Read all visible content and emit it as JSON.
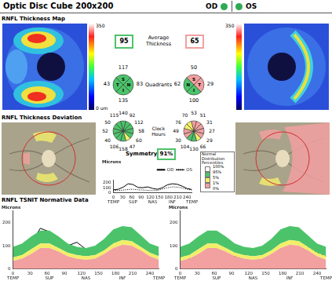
{
  "header": {
    "title": "Optic Disc Cube 200x200",
    "eyes": [
      "OD",
      "OS"
    ]
  },
  "thickness_map": {
    "label": "RNFL Thickness Map",
    "scale_max": 350,
    "scale_min": "0 um"
  },
  "deviation": {
    "label": "RNFL Thickness Deviation"
  },
  "average_thickness": {
    "label": "Average Thickness",
    "OD": {
      "value": 95,
      "color": "#4cc36a"
    },
    "OS": {
      "value": 65,
      "color": "#f2a0a0"
    }
  },
  "quadrants": {
    "label": "Quadrants",
    "OD": [
      {
        "label": "S",
        "value": 117,
        "color": "#4cc36a"
      },
      {
        "label": "N",
        "value": 83,
        "color": "#4cc36a"
      },
      {
        "label": "I",
        "value": 135,
        "color": "#4cc36a"
      },
      {
        "label": "T",
        "value": 43,
        "color": "#4cc36a"
      }
    ],
    "OS": [
      {
        "label": "S",
        "value": 50,
        "color": "#f2a0a0"
      },
      {
        "label": "T",
        "value": 29,
        "color": "#f2a0a0"
      },
      {
        "label": "I",
        "value": 100,
        "color": "#4cc36a"
      },
      {
        "label": "N",
        "value": 62,
        "color": "#4cc36a"
      }
    ]
  },
  "clock_hours": {
    "label": "Clock Hours",
    "OD": {
      "values": [
        140,
        92,
        112,
        58,
        60,
        47,
        158,
        106,
        40,
        52,
        50,
        115
      ],
      "colors": [
        "#4cc36a",
        "#4cc36a",
        "#4cc36a",
        "#4cc36a",
        "#4cc36a",
        "#f2ee6a",
        "#4cc36a",
        "#4cc36a",
        "#4cc36a",
        "#4cc36a",
        "#4cc36a",
        "#4cc36a"
      ]
    },
    "OS": {
      "values": [
        53,
        51,
        31,
        27,
        29,
        66,
        130,
        104,
        30,
        49,
        76,
        70
      ],
      "colors": [
        "#f2a0a0",
        "#f2a0a0",
        "#f2a0a0",
        "#f2a0a0",
        "#f2a0a0",
        "#f2ee6a",
        "#4cc36a",
        "#4cc36a",
        "#f2a0a0",
        "#f2a0a0",
        "#f2ee6a",
        "#f2ee6a"
      ]
    }
  },
  "symmetry": {
    "label": "Symmetry",
    "text": "91%",
    "color": "#4cc36a"
  },
  "percentile_legend": {
    "title": [
      "Normal",
      "Distribution",
      "Percentiles"
    ],
    "labels": [
      "100%",
      "95%",
      "5%",
      "1%",
      "0%"
    ],
    "colors": [
      "#ffffff",
      "#4cc36a",
      "#f2ee6a",
      "#f2a0a0"
    ]
  },
  "normative_title": "RNFL TSNIT Normative Data",
  "chart_data": [
    {
      "type": "line",
      "title": "Microns",
      "legend": "top right",
      "grid": false,
      "x": [
        0,
        16,
        32,
        48,
        64,
        80,
        96,
        112,
        128,
        144,
        160,
        176,
        192,
        208,
        224,
        240,
        256
      ],
      "xlim": [
        0,
        256
      ],
      "xticks": [
        0,
        30,
        60,
        90,
        120,
        150,
        180,
        210,
        240
      ],
      "region_ticks": [
        {
          "value": 0,
          "label": "TEMP"
        },
        {
          "value": 64,
          "label": "SUP"
        },
        {
          "value": 128,
          "label": "NAS"
        },
        {
          "value": 192,
          "label": "INF"
        },
        {
          "value": 256,
          "label": "TEMP"
        }
      ],
      "ylim": [
        0,
        250
      ],
      "yticks": [
        0,
        100,
        200
      ],
      "series": [
        {
          "name": "OD",
          "type": "line",
          "line_style": "solid",
          "color": "#000000",
          "values": [
            60,
            70,
            110,
            175,
            160,
            105,
            100,
            115,
            85,
            70,
            100,
            155,
            175,
            165,
            130,
            85,
            65
          ]
        },
        {
          "name": "OS",
          "type": "line",
          "line_style": "dotted",
          "color": "#000000",
          "values": [
            50,
            45,
            55,
            65,
            70,
            60,
            55,
            50,
            45,
            50,
            75,
            100,
            115,
            110,
            95,
            70,
            55
          ]
        }
      ]
    },
    {
      "type": "line",
      "title": "Microns",
      "grid": false,
      "x": [
        0,
        16,
        32,
        48,
        64,
        80,
        96,
        112,
        128,
        144,
        160,
        176,
        192,
        208,
        224,
        240,
        256
      ],
      "xlim": [
        0,
        256
      ],
      "xticks": [
        0,
        30,
        60,
        90,
        120,
        150,
        180,
        210,
        240
      ],
      "region_ticks": [
        {
          "value": 0,
          "label": "TEMP"
        },
        {
          "value": 64,
          "label": "SUP"
        },
        {
          "value": 128,
          "label": "NAS"
        },
        {
          "value": 192,
          "label": "INF"
        },
        {
          "value": 256,
          "label": "TEMP"
        }
      ],
      "ylim": [
        0,
        250
      ],
      "yticks": [
        0,
        100,
        200
      ],
      "series": [
        {
          "name": "1%",
          "type": "area",
          "color": "#f2a0a0",
          "values": [
            35,
            45,
            65,
            90,
            90,
            75,
            55,
            45,
            40,
            45,
            65,
            90,
            105,
            100,
            80,
            55,
            40
          ]
        },
        {
          "name": "5%",
          "type": "area",
          "color": "#f2ee6a",
          "values": [
            50,
            60,
            85,
            110,
            110,
            90,
            70,
            60,
            55,
            60,
            80,
            110,
            125,
            120,
            95,
            70,
            55
          ]
        },
        {
          "name": "95%",
          "type": "area",
          "color": "#4cc36a",
          "values": [
            95,
            110,
            140,
            165,
            165,
            140,
            110,
            95,
            90,
            100,
            130,
            170,
            185,
            180,
            145,
            110,
            95
          ]
        },
        {
          "name": "OD",
          "type": "line",
          "line_style": "solid",
          "color": "#000000",
          "values": [
            60,
            70,
            110,
            175,
            160,
            105,
            100,
            115,
            85,
            70,
            100,
            155,
            175,
            165,
            130,
            85,
            65
          ]
        }
      ]
    },
    {
      "type": "line",
      "title": "Microns",
      "grid": false,
      "x": [
        0,
        16,
        32,
        48,
        64,
        80,
        96,
        112,
        128,
        144,
        160,
        176,
        192,
        208,
        224,
        240,
        256
      ],
      "xlim": [
        0,
        256
      ],
      "xticks": [
        0,
        30,
        60,
        90,
        120,
        150,
        180,
        210,
        240
      ],
      "region_ticks": [
        {
          "value": 0,
          "label": "TEMP"
        },
        {
          "value": 64,
          "label": "SUP"
        },
        {
          "value": 128,
          "label": "NAS"
        },
        {
          "value": 192,
          "label": "INF"
        },
        {
          "value": 256,
          "label": "TEMP"
        }
      ],
      "ylim": [
        0,
        250
      ],
      "yticks": [
        0,
        100,
        200
      ],
      "series": [
        {
          "name": "1%",
          "type": "area",
          "color": "#f2a0a0",
          "values": [
            35,
            45,
            65,
            90,
            90,
            75,
            55,
            45,
            40,
            45,
            65,
            90,
            105,
            100,
            80,
            55,
            40
          ]
        },
        {
          "name": "5%",
          "type": "area",
          "color": "#f2ee6a",
          "values": [
            50,
            60,
            85,
            110,
            110,
            90,
            70,
            60,
            55,
            60,
            80,
            110,
            125,
            120,
            95,
            70,
            55
          ]
        },
        {
          "name": "95%",
          "type": "area",
          "color": "#4cc36a",
          "values": [
            95,
            110,
            140,
            165,
            165,
            140,
            110,
            95,
            90,
            100,
            130,
            170,
            185,
            180,
            145,
            110,
            95
          ]
        },
        {
          "name": "OS",
          "type": "line",
          "line_style": "dashed",
          "color": "#000000",
          "values": [
            50,
            45,
            55,
            65,
            70,
            60,
            55,
            50,
            45,
            50,
            75,
            100,
            115,
            110,
            95,
            70,
            55
          ]
        }
      ]
    }
  ]
}
